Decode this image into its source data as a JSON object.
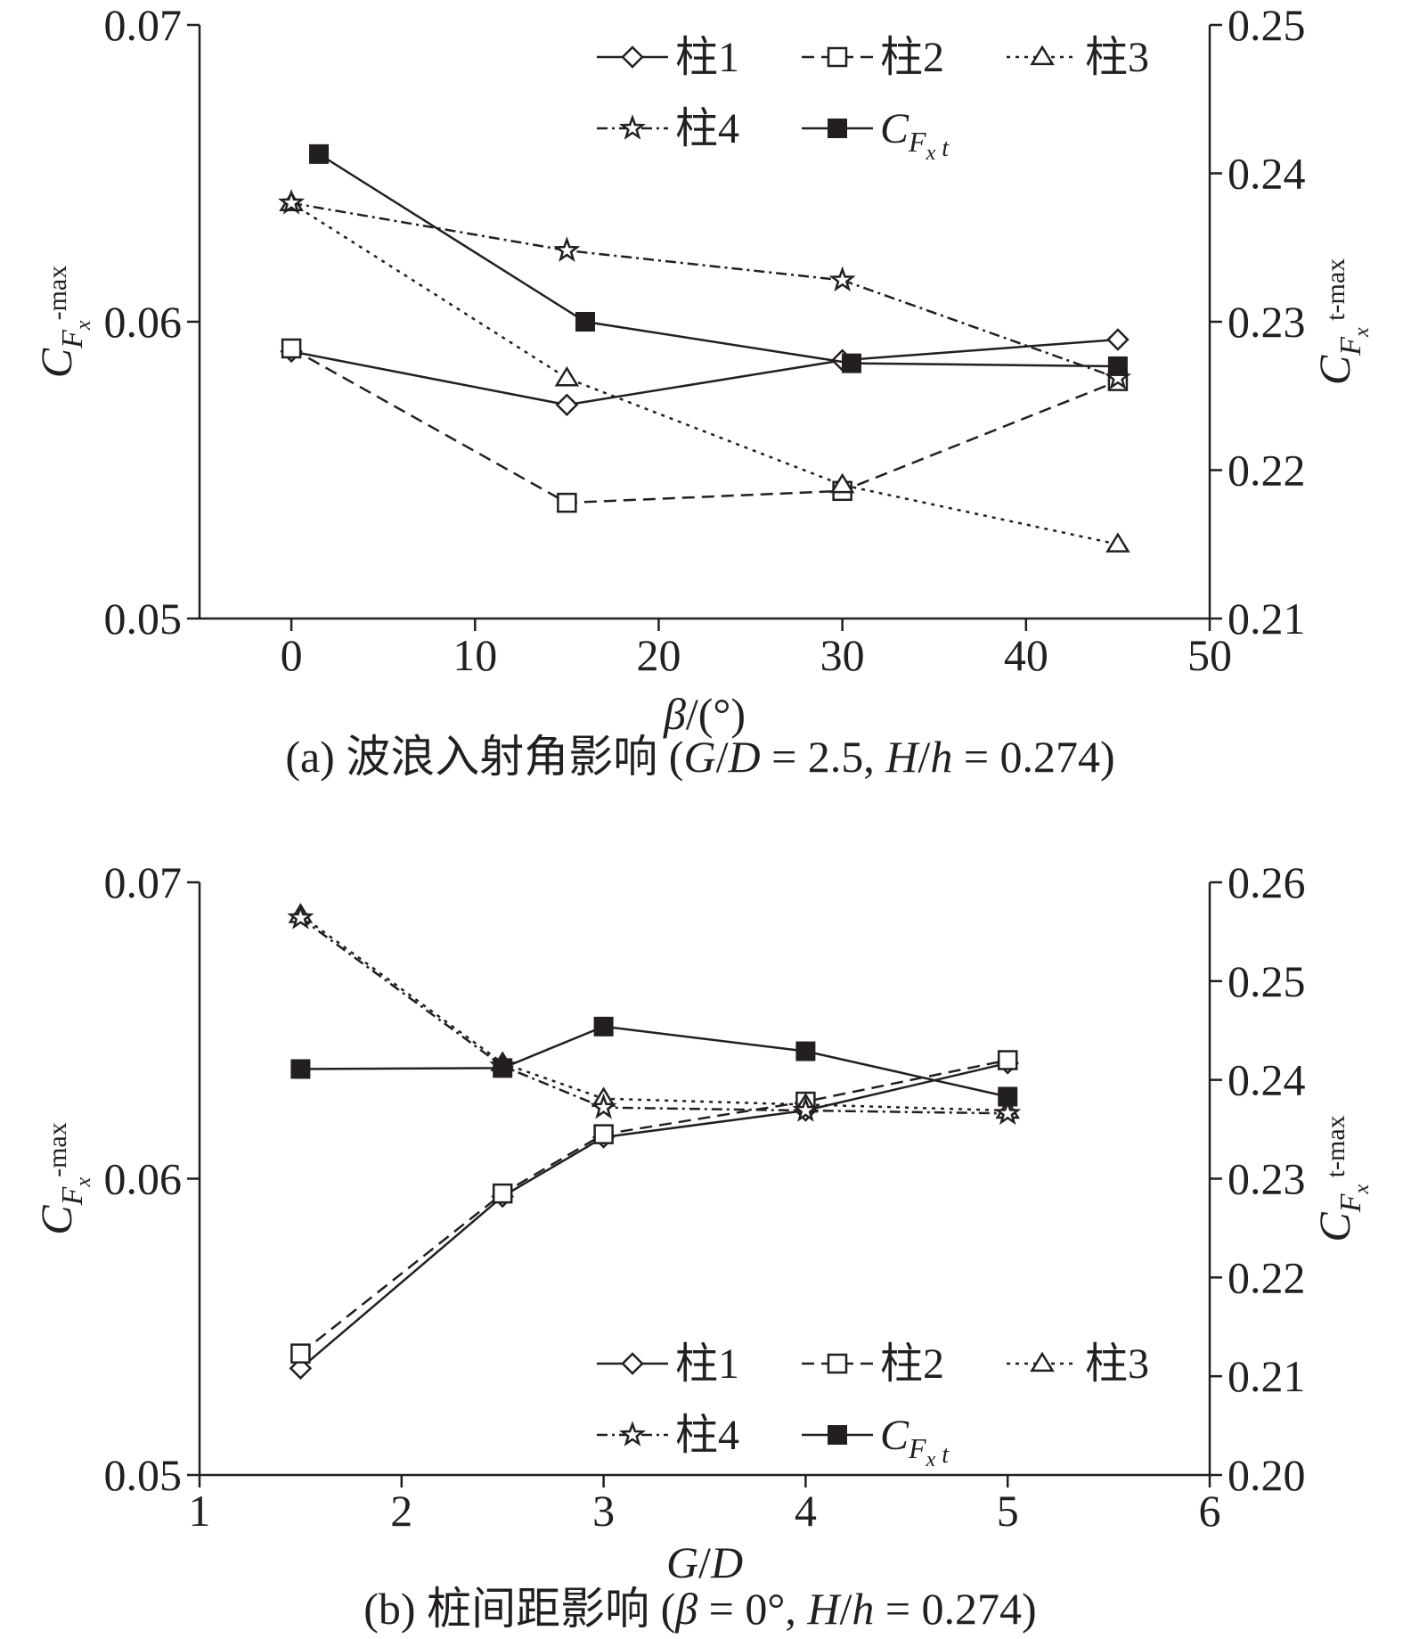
{
  "chart_data": [
    {
      "type": "line",
      "caption": "(a) 波浪入射角影响 (G/D = 2.5, H/h = 0.274)",
      "caption_parts": [
        "(a) 波浪入射角影响 (",
        "G",
        "/",
        "D",
        " = 2.5, ",
        "H",
        "/",
        "h",
        " = 0.274)"
      ],
      "xlabel_parts": [
        "β",
        "/(°)"
      ],
      "ylabel_left": {
        "main": "C",
        "sub": "F",
        "subsub": "x",
        "suffix": "-max"
      },
      "ylabel_right": {
        "main": "C",
        "sub": "F",
        "subsub": "x",
        "suffix": " t-max"
      },
      "xlim": [
        -5,
        50
      ],
      "ylim_left": [
        0.05,
        0.07
      ],
      "ylim_right": [
        0.21,
        0.25
      ],
      "xticks": [
        0,
        10,
        20,
        30,
        40,
        50
      ],
      "yticks_left": [
        0.05,
        0.06,
        0.07
      ],
      "yticks_left_labels": [
        "0.05",
        "0.06",
        "0.07"
      ],
      "yticks_right": [
        0.21,
        0.22,
        0.23,
        0.24,
        0.25
      ],
      "yticks_right_labels": [
        "0.21",
        "0.22",
        "0.23",
        "0.24",
        "0.25"
      ],
      "legend_position": "top-right",
      "grid": false,
      "series": [
        {
          "name": "柱1",
          "axis": "left",
          "marker": "diamond",
          "dash": "solid",
          "points": [
            [
              0,
              0.059
            ],
            [
              15,
              0.0572
            ],
            [
              30,
              0.0587
            ],
            [
              45,
              0.0594
            ]
          ]
        },
        {
          "name": "柱2",
          "axis": "left",
          "marker": "square-open",
          "dash": "dash",
          "points": [
            [
              0,
              0.0591
            ],
            [
              15,
              0.0539
            ],
            [
              30,
              0.0543
            ],
            [
              45,
              0.058
            ]
          ]
        },
        {
          "name": "柱3",
          "axis": "left",
          "marker": "triangle",
          "dash": "dot",
          "points": [
            [
              0,
              0.064
            ],
            [
              15,
              0.0581
            ],
            [
              30,
              0.0545
            ],
            [
              45,
              0.0525
            ]
          ]
        },
        {
          "name": "柱4",
          "axis": "left",
          "marker": "star",
          "dash": "dashdot",
          "points": [
            [
              0,
              0.064
            ],
            [
              15,
              0.0624
            ],
            [
              30,
              0.0614
            ],
            [
              45,
              0.0581
            ]
          ]
        },
        {
          "name": "C_Fx t",
          "name_parts": [
            "C",
            "F",
            "x",
            " t"
          ],
          "axis": "right",
          "marker": "square-filled",
          "dash": "solid",
          "points": [
            [
              1.5,
              0.2413
            ],
            [
              16,
              0.23
            ],
            [
              30.5,
              0.2272
            ],
            [
              45,
              0.227
            ]
          ]
        }
      ]
    },
    {
      "type": "line",
      "caption": "(b) 桩间距影响 (β = 0°, H/h = 0.274)",
      "caption_parts": [
        "(b) 桩间距影响 (",
        "β",
        " = 0°, ",
        "H",
        "/",
        "h",
        " = 0.274)"
      ],
      "xlabel_parts": [
        "G",
        "/",
        "D"
      ],
      "ylabel_left": {
        "main": "C",
        "sub": "F",
        "subsub": "x",
        "suffix": "-max"
      },
      "ylabel_right": {
        "main": "C",
        "sub": "F",
        "subsub": "x",
        "suffix": " t-max"
      },
      "xlim": [
        1,
        6
      ],
      "ylim_left": [
        0.05,
        0.07
      ],
      "ylim_right": [
        0.2,
        0.26
      ],
      "xticks": [
        1,
        2,
        3,
        4,
        5,
        6
      ],
      "yticks_left": [
        0.05,
        0.06,
        0.07
      ],
      "yticks_left_labels": [
        "0.05",
        "0.06",
        "0.07"
      ],
      "yticks_right": [
        0.2,
        0.21,
        0.22,
        0.23,
        0.24,
        0.25,
        0.26
      ],
      "yticks_right_labels": [
        "0.20",
        "0.21",
        "0.22",
        "0.23",
        "0.24",
        "0.25",
        "0.26"
      ],
      "legend_position": "bottom-right",
      "grid": false,
      "series": [
        {
          "name": "柱1",
          "axis": "left",
          "marker": "diamond",
          "dash": "solid",
          "points": [
            [
              1.5,
              0.0536
            ],
            [
              2.5,
              0.0594
            ],
            [
              3,
              0.0614
            ],
            [
              4,
              0.0623
            ],
            [
              5,
              0.0639
            ]
          ]
        },
        {
          "name": "柱2",
          "axis": "left",
          "marker": "square-open",
          "dash": "dash",
          "points": [
            [
              1.5,
              0.0541
            ],
            [
              2.5,
              0.0595
            ],
            [
              3,
              0.0615
            ],
            [
              4,
              0.0626
            ],
            [
              5,
              0.064
            ]
          ]
        },
        {
          "name": "柱3",
          "axis": "left",
          "marker": "triangle",
          "dash": "dot",
          "points": [
            [
              1.5,
              0.0689
            ],
            [
              2.5,
              0.0639
            ],
            [
              3,
              0.0627
            ],
            [
              4,
              0.0625
            ],
            [
              5,
              0.0623
            ]
          ]
        },
        {
          "name": "柱4",
          "axis": "left",
          "marker": "star",
          "dash": "dashdot",
          "points": [
            [
              1.5,
              0.0688
            ],
            [
              2.5,
              0.0638
            ],
            [
              3,
              0.0624
            ],
            [
              4,
              0.0623
            ],
            [
              5,
              0.0622
            ]
          ]
        },
        {
          "name": "C_Fx t",
          "name_parts": [
            "C",
            "F",
            "x",
            " t"
          ],
          "axis": "right",
          "marker": "square-filled",
          "dash": "solid",
          "points": [
            [
              1.5,
              0.2411
            ],
            [
              2.5,
              0.2412
            ],
            [
              3,
              0.2454
            ],
            [
              4,
              0.2429
            ],
            [
              5,
              0.2383
            ]
          ]
        }
      ]
    }
  ]
}
